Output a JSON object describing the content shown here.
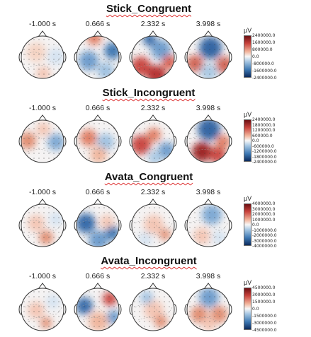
{
  "time_labels": [
    "-1.000 s",
    "0.666 s",
    "2.332 s",
    "3.998 s"
  ],
  "colorbar_unit": "µV",
  "conditions": [
    {
      "title": "Stick_Congruent",
      "ticks": [
        "2400000.0",
        "1600000.0",
        "800000.0",
        "0.0",
        "-800000.0",
        "-1600000.0",
        "-2400000.0"
      ],
      "maps": [
        [
          {
            "c": "#f6d3c2",
            "x": 30,
            "y": 32,
            "r": 14
          },
          {
            "c": "#d4e3f1",
            "x": 58,
            "y": 38,
            "r": 12
          },
          {
            "c": "#f3c4b2",
            "x": 40,
            "y": 62,
            "r": 10
          }
        ],
        [
          {
            "c": "#6a9acb",
            "x": 26,
            "y": 44,
            "r": 14
          },
          {
            "c": "#e07a5f",
            "x": 34,
            "y": 12,
            "r": 10
          },
          {
            "c": "#3a74b0",
            "x": 60,
            "y": 30,
            "r": 12
          },
          {
            "c": "#9cc0e0",
            "x": 50,
            "y": 58,
            "r": 12
          }
        ],
        [
          {
            "c": "#c8413b",
            "x": 22,
            "y": 52,
            "r": 14
          },
          {
            "c": "#b52b2b",
            "x": 44,
            "y": 64,
            "r": 14
          },
          {
            "c": "#6a9acb",
            "x": 50,
            "y": 28,
            "r": 14
          },
          {
            "c": "#2e66a6",
            "x": 34,
            "y": 14,
            "r": 9
          },
          {
            "c": "#d85a48",
            "x": 62,
            "y": 46,
            "r": 10
          }
        ],
        [
          {
            "c": "#2a5fa0",
            "x": 42,
            "y": 26,
            "r": 16
          },
          {
            "c": "#d06050",
            "x": 20,
            "y": 48,
            "r": 12
          },
          {
            "c": "#d06050",
            "x": 62,
            "y": 50,
            "r": 12
          },
          {
            "c": "#a8c8e4",
            "x": 40,
            "y": 60,
            "r": 12
          }
        ]
      ]
    },
    {
      "title": "Stick_Incongruent",
      "ticks": [
        "2400000.0",
        "1800000.0",
        "1200000.0",
        "600000.0",
        "0.0",
        "-600000.0",
        "-1200000.0",
        "-1800000.0",
        "-2400000.0"
      ],
      "maps": [
        [
          {
            "c": "#e08a6e",
            "x": 18,
            "y": 38,
            "r": 12
          },
          {
            "c": "#7aa7d3",
            "x": 58,
            "y": 40,
            "r": 12
          },
          {
            "c": "#f3c4b2",
            "x": 40,
            "y": 22,
            "r": 10
          }
        ],
        [
          {
            "c": "#e07a5f",
            "x": 26,
            "y": 34,
            "r": 12
          },
          {
            "c": "#9cc0e0",
            "x": 50,
            "y": 40,
            "r": 12
          },
          {
            "c": "#f0b49b",
            "x": 40,
            "y": 58,
            "r": 12
          }
        ],
        [
          {
            "c": "#c8413b",
            "x": 22,
            "y": 44,
            "r": 14
          },
          {
            "c": "#e07a5f",
            "x": 40,
            "y": 30,
            "r": 10
          },
          {
            "c": "#6a9acb",
            "x": 58,
            "y": 52,
            "r": 12
          },
          {
            "c": "#a8c8e4",
            "x": 42,
            "y": 62,
            "r": 10
          }
        ],
        [
          {
            "c": "#2a5fa0",
            "x": 40,
            "y": 22,
            "r": 16
          },
          {
            "c": "#9a1c20",
            "x": 30,
            "y": 54,
            "r": 14
          },
          {
            "c": "#c8413b",
            "x": 52,
            "y": 58,
            "r": 12
          },
          {
            "c": "#e07a5f",
            "x": 60,
            "y": 40,
            "r": 10
          }
        ]
      ]
    },
    {
      "title": "Avata_Congruent",
      "ticks": [
        "4000000.0",
        "3000000.0",
        "2000000.0",
        "1000000.0",
        "0.0",
        "-1000000.0",
        "-2000000.0",
        "-3000000.0",
        "-4000000.0"
      ],
      "maps": [
        [
          {
            "c": "#f3c4b2",
            "x": 30,
            "y": 36,
            "r": 12
          },
          {
            "c": "#e08a6e",
            "x": 44,
            "y": 56,
            "r": 10
          },
          {
            "c": "#d4e3f1",
            "x": 58,
            "y": 30,
            "r": 10
          }
        ],
        [
          {
            "c": "#2e66a6",
            "x": 22,
            "y": 36,
            "r": 14
          },
          {
            "c": "#6a9acb",
            "x": 40,
            "y": 60,
            "r": 14
          },
          {
            "c": "#f3c4b2",
            "x": 52,
            "y": 34,
            "r": 10
          },
          {
            "c": "#3a74b0",
            "x": 60,
            "y": 50,
            "r": 10
          }
        ],
        [
          {
            "c": "#f3c4b2",
            "x": 40,
            "y": 38,
            "r": 14
          },
          {
            "c": "#d4e3f1",
            "x": 28,
            "y": 58,
            "r": 10
          },
          {
            "c": "#e08a6e",
            "x": 56,
            "y": 52,
            "r": 8
          }
        ],
        [
          {
            "c": "#7aa7d3",
            "x": 44,
            "y": 24,
            "r": 14
          },
          {
            "c": "#f3c4b2",
            "x": 30,
            "y": 54,
            "r": 12
          },
          {
            "c": "#d4e3f1",
            "x": 54,
            "y": 56,
            "r": 10
          }
        ]
      ]
    },
    {
      "title": "Avata_Incongruent",
      "ticks": [
        "4500000.0",
        "3000000.0",
        "1500000.0",
        "0.0",
        "-1500000.0",
        "-3000000.0",
        "-4500000.0"
      ],
      "maps": [
        [
          {
            "c": "#f3c4b2",
            "x": 30,
            "y": 40,
            "r": 12
          },
          {
            "c": "#d4e3f1",
            "x": 54,
            "y": 28,
            "r": 10
          },
          {
            "c": "#e08a6e",
            "x": 44,
            "y": 58,
            "r": 8
          }
        ],
        [
          {
            "c": "#2e66a6",
            "x": 20,
            "y": 34,
            "r": 12
          },
          {
            "c": "#c8413b",
            "x": 56,
            "y": 24,
            "r": 10
          },
          {
            "c": "#f0b49b",
            "x": 40,
            "y": 56,
            "r": 14
          },
          {
            "c": "#6a9acb",
            "x": 62,
            "y": 50,
            "r": 10
          }
        ],
        [
          {
            "c": "#f3c4b2",
            "x": 40,
            "y": 40,
            "r": 14
          },
          {
            "c": "#9cc0e0",
            "x": 30,
            "y": 22,
            "r": 9
          },
          {
            "c": "#e08a6e",
            "x": 50,
            "y": 56,
            "r": 9
          }
        ],
        [
          {
            "c": "#6a9acb",
            "x": 40,
            "y": 22,
            "r": 14
          },
          {
            "c": "#e08a6e",
            "x": 26,
            "y": 46,
            "r": 12
          },
          {
            "c": "#e08a6e",
            "x": 54,
            "y": 46,
            "r": 12
          },
          {
            "c": "#f3c4b2",
            "x": 40,
            "y": 60,
            "r": 10
          }
        ]
      ]
    }
  ]
}
